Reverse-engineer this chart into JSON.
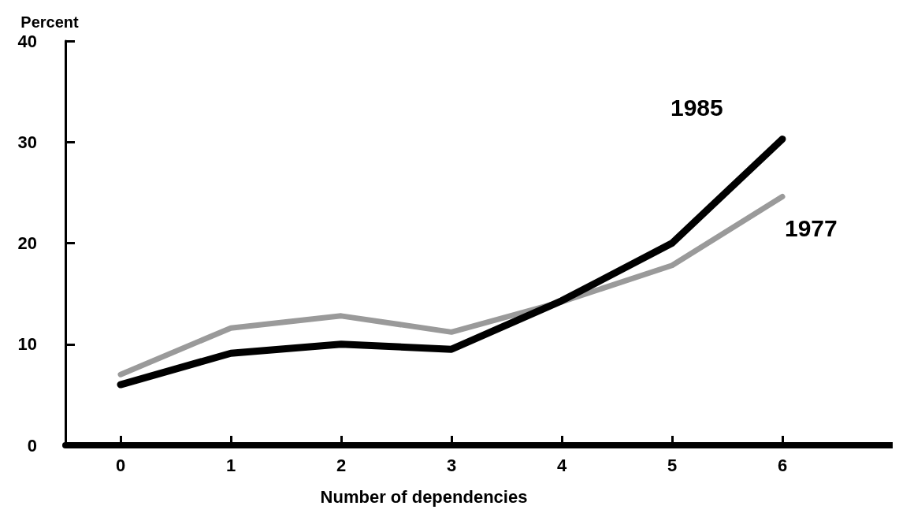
{
  "chart_data": {
    "type": "line",
    "ylabel": "Percent",
    "xlabel": "Number of dependencies",
    "x": [
      0,
      1,
      2,
      3,
      4,
      5,
      6
    ],
    "series": [
      {
        "name": "1977",
        "color": "#9a9a9a",
        "values": [
          7,
          11.6,
          12.8,
          11.2,
          14.2,
          17.8,
          24.6
        ]
      },
      {
        "name": "1985",
        "color": "#000000",
        "values": [
          6,
          9.1,
          10,
          9.5,
          14.3,
          20,
          30.3
        ]
      }
    ],
    "xlim": [
      -0.5,
      7
    ],
    "xticks": [
      0,
      1,
      2,
      3,
      4,
      5,
      6
    ],
    "ylim": [
      0,
      40
    ],
    "yticks": [
      0,
      10,
      20,
      30,
      40
    ],
    "grid": false,
    "legend": false,
    "marker": "none",
    "line_style": "solid"
  }
}
